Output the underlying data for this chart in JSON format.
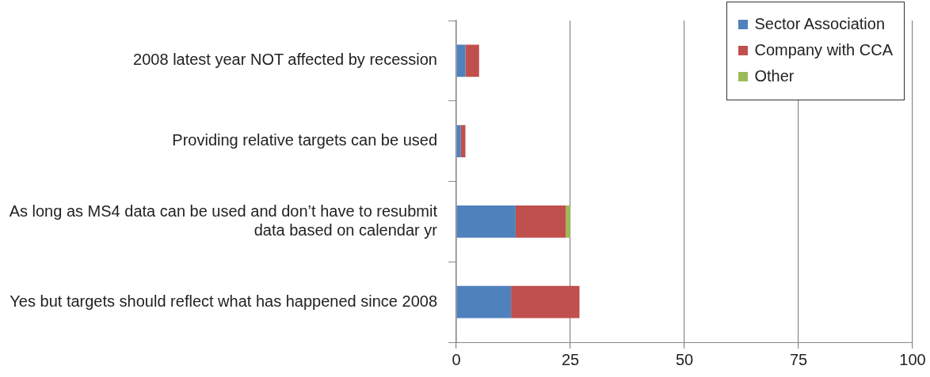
{
  "chart_data": {
    "type": "bar",
    "orientation": "horizontal",
    "stacked": true,
    "categories": [
      "2008 latest year NOT affected by recession",
      "Providing relative targets can be used",
      "As long as MS4 data can be used and don’t have to resubmit data based on calendar yr",
      "Yes but targets should reflect what has happened since 2008"
    ],
    "series": [
      {
        "name": "Sector Association",
        "color": "#4f81bd",
        "values": [
          2,
          1,
          13,
          12
        ]
      },
      {
        "name": "Company with CCA",
        "color": "#c0504d",
        "values": [
          3,
          1,
          11,
          15
        ]
      },
      {
        "name": "Other",
        "color": "#9bbb59",
        "values": [
          0,
          0,
          1,
          0
        ]
      }
    ],
    "xlim": [
      0,
      100
    ],
    "xticks": [
      0,
      25,
      50,
      75,
      100
    ],
    "grid": "x",
    "legend": "top right"
  }
}
